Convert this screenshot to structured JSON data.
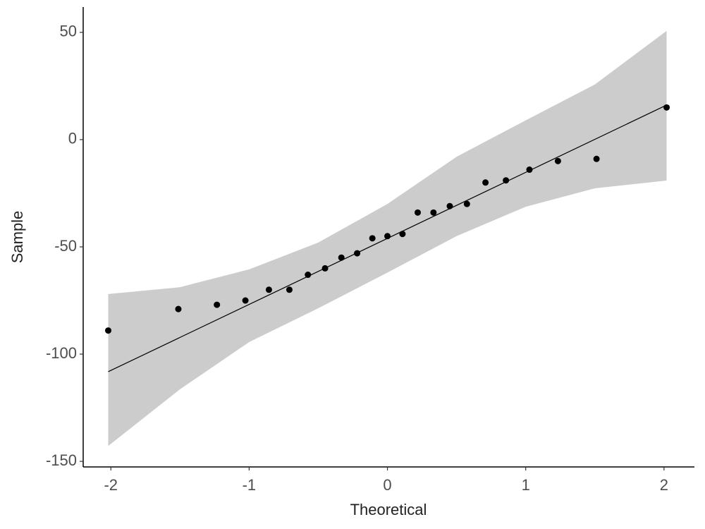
{
  "chart_data": {
    "type": "scatter",
    "x_label": "Theoretical",
    "y_label": "Sample",
    "x": [
      -2.019,
      -1.512,
      -1.233,
      -1.027,
      -0.857,
      -0.709,
      -0.575,
      -0.451,
      -0.333,
      -0.219,
      -0.109,
      0,
      0.109,
      0.219,
      0.333,
      0.451,
      0.575,
      0.709,
      0.857,
      1.027,
      1.233,
      1.512,
      2.019
    ],
    "values": [
      -89,
      -79,
      -77,
      -75,
      -70,
      -70,
      -63,
      -60,
      -55,
      -53,
      -46,
      -45,
      -44,
      -34,
      -34,
      -31,
      -30,
      -20,
      -19,
      -14,
      -10,
      -9,
      15
    ],
    "color": "#000000",
    "reference_line": {
      "x": [
        -2.019,
        2.019
      ],
      "values": [
        -108.2,
        16.1
      ],
      "color": "#000000"
    },
    "band": {
      "x": [
        -2.019,
        -1.5,
        -1,
        -0.5,
        0,
        0.5,
        1,
        1.5,
        2.019
      ],
      "upper": [
        -72,
        -68.8,
        -60.5,
        -48,
        -30,
        -8,
        9,
        25.7,
        50.7
      ],
      "lower": [
        -142.8,
        -116.4,
        -94.4,
        -78.6,
        -62,
        -45,
        -31.3,
        -22.7,
        -19.1
      ],
      "color": "#cccccc"
    },
    "xlim": [
      -2.2,
      2.22
    ],
    "ylim": [
      -152.6,
      61.8
    ],
    "xticks": [
      -2,
      -1,
      0,
      1,
      2
    ],
    "yticks": [
      -150,
      -100,
      -50,
      0,
      50
    ],
    "grid": false
  }
}
